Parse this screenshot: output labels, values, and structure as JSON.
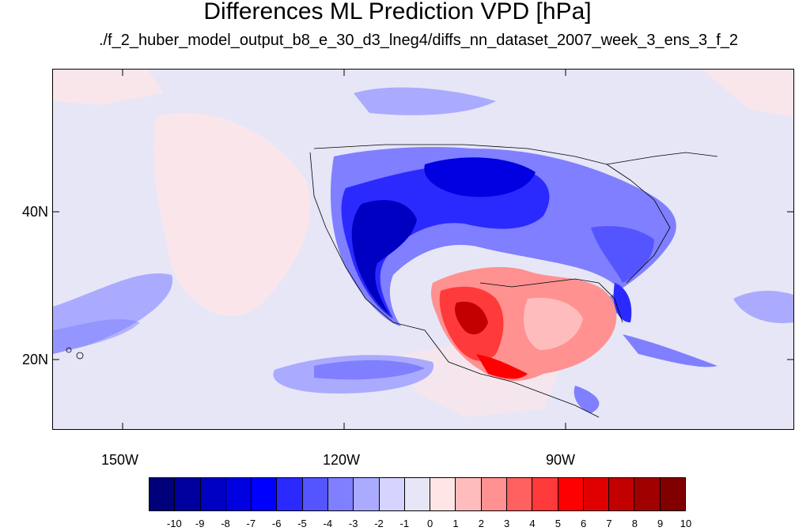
{
  "title": "Differences ML Prediction VPD [hPa]",
  "subtitle": "./f_2_huber_model_output_b8_e_30_d3_lneg4/diffs_nn_dataset_2007_week_3_ens_3_f_2",
  "y_axis_labels": [
    "40N",
    "20N"
  ],
  "x_axis_labels": [
    "150W",
    "120W",
    "90W"
  ],
  "colorbar": {
    "labels": [
      "-10",
      "-9",
      "-8",
      "-7",
      "-6",
      "-5",
      "-4",
      "-3",
      "-2",
      "-1",
      "0",
      "1",
      "2",
      "3",
      "4",
      "5",
      "6",
      "7",
      "8",
      "9",
      "10"
    ],
    "colors": [
      "#00007a",
      "#00009e",
      "#0000c2",
      "#0000e0",
      "#0000ff",
      "#2a2aff",
      "#5555ff",
      "#7f7fff",
      "#aaaaff",
      "#d4d4ff",
      "#e6e6f7",
      "#ffe6e6",
      "#ffbcbc",
      "#ff9191",
      "#ff6060",
      "#ff3a3a",
      "#ff0000",
      "#e00000",
      "#c20000",
      "#a00000",
      "#800000"
    ]
  }
}
